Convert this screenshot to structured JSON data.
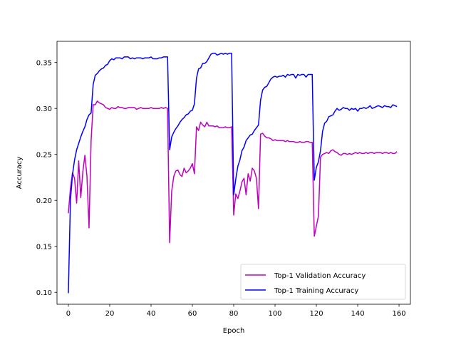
{
  "chart_data": {
    "type": "line",
    "title": "",
    "xlabel": "Epoch",
    "ylabel": "Accuracy",
    "xlim": [
      -5.5,
      165.5
    ],
    "ylim": [
      0.087,
      0.373
    ],
    "xticks": [
      0,
      20,
      40,
      60,
      80,
      100,
      120,
      140,
      160
    ],
    "yticks": [
      0.1,
      0.15,
      0.2,
      0.25,
      0.3,
      0.35
    ],
    "ytick_labels": [
      "0.10",
      "0.15",
      "0.20",
      "0.25",
      "0.30",
      "0.35"
    ],
    "grid": false,
    "legend_position": "lower-right",
    "series": [
      {
        "name": "Top-1 Validation Accuracy",
        "color": "#bf00bf",
        "values": [
          0.186,
          0.213,
          0.23,
          0.224,
          0.197,
          0.243,
          0.203,
          0.231,
          0.249,
          0.226,
          0.17,
          0.265,
          0.304,
          0.304,
          0.308,
          0.306,
          0.305,
          0.304,
          0.301,
          0.3,
          0.299,
          0.301,
          0.3,
          0.3,
          0.302,
          0.301,
          0.301,
          0.3,
          0.3,
          0.301,
          0.301,
          0.301,
          0.301,
          0.299,
          0.3,
          0.301,
          0.3,
          0.3,
          0.3,
          0.3,
          0.301,
          0.3,
          0.3,
          0.3,
          0.3,
          0.301,
          0.3,
          0.301,
          0.3,
          0.154,
          0.21,
          0.226,
          0.232,
          0.233,
          0.228,
          0.226,
          0.235,
          0.23,
          0.232,
          0.235,
          0.24,
          0.229,
          0.28,
          0.276,
          0.285,
          0.282,
          0.28,
          0.285,
          0.281,
          0.281,
          0.281,
          0.28,
          0.281,
          0.279,
          0.279,
          0.279,
          0.28,
          0.279,
          0.279,
          0.28,
          0.184,
          0.207,
          0.202,
          0.21,
          0.22,
          0.224,
          0.206,
          0.229,
          0.221,
          0.235,
          0.232,
          0.224,
          0.191,
          0.272,
          0.273,
          0.27,
          0.268,
          0.268,
          0.267,
          0.265,
          0.266,
          0.265,
          0.265,
          0.265,
          0.265,
          0.264,
          0.265,
          0.264,
          0.264,
          0.264,
          0.263,
          0.263,
          0.264,
          0.263,
          0.263,
          0.264,
          0.264,
          0.263,
          0.263,
          0.161,
          0.172,
          0.183,
          0.247,
          0.25,
          0.251,
          0.252,
          0.251,
          0.254,
          0.255,
          0.253,
          0.252,
          0.25,
          0.249,
          0.251,
          0.251,
          0.25,
          0.251,
          0.25,
          0.251,
          0.252,
          0.251,
          0.252,
          0.251,
          0.251,
          0.252,
          0.251,
          0.252,
          0.252,
          0.251,
          0.252,
          0.252,
          0.252,
          0.251,
          0.252,
          0.252,
          0.251,
          0.252,
          0.251,
          0.251,
          0.253
        ]
      },
      {
        "name": "Top-1 Training Accuracy",
        "color": "#0000ff",
        "values": [
          0.099,
          0.2,
          0.228,
          0.244,
          0.255,
          0.262,
          0.269,
          0.275,
          0.28,
          0.288,
          0.293,
          0.295,
          0.326,
          0.336,
          0.338,
          0.341,
          0.343,
          0.344,
          0.347,
          0.348,
          0.352,
          0.354,
          0.353,
          0.355,
          0.355,
          0.355,
          0.354,
          0.356,
          0.356,
          0.356,
          0.354,
          0.355,
          0.354,
          0.355,
          0.355,
          0.355,
          0.354,
          0.355,
          0.355,
          0.355,
          0.356,
          0.354,
          0.354,
          0.354,
          0.355,
          0.355,
          0.356,
          0.356,
          0.356,
          0.255,
          0.269,
          0.274,
          0.278,
          0.281,
          0.285,
          0.288,
          0.29,
          0.293,
          0.294,
          0.297,
          0.298,
          0.305,
          0.333,
          0.343,
          0.344,
          0.349,
          0.349,
          0.351,
          0.355,
          0.359,
          0.36,
          0.36,
          0.358,
          0.359,
          0.36,
          0.359,
          0.36,
          0.359,
          0.36,
          0.36,
          0.206,
          0.223,
          0.237,
          0.244,
          0.254,
          0.258,
          0.265,
          0.268,
          0.271,
          0.272,
          0.276,
          0.279,
          0.282,
          0.309,
          0.32,
          0.323,
          0.324,
          0.328,
          0.332,
          0.334,
          0.335,
          0.334,
          0.335,
          0.335,
          0.336,
          0.334,
          0.337,
          0.336,
          0.337,
          0.337,
          0.333,
          0.337,
          0.336,
          0.337,
          0.337,
          0.334,
          0.337,
          0.337,
          0.337,
          0.222,
          0.236,
          0.242,
          0.254,
          0.275,
          0.284,
          0.286,
          0.291,
          0.292,
          0.293,
          0.297,
          0.3,
          0.298,
          0.299,
          0.301,
          0.3,
          0.3,
          0.298,
          0.3,
          0.299,
          0.3,
          0.297,
          0.3,
          0.3,
          0.301,
          0.3,
          0.301,
          0.303,
          0.3,
          0.301,
          0.302,
          0.303,
          0.302,
          0.301,
          0.303,
          0.302,
          0.302,
          0.301,
          0.304,
          0.303,
          0.302
        ]
      }
    ]
  }
}
